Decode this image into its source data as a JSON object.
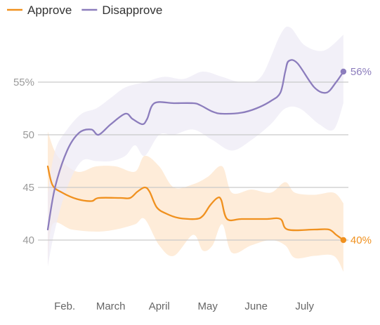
{
  "chart_data": {
    "type": "line",
    "title": "",
    "xlabel": "",
    "ylabel": "",
    "ylim": [
      36,
      60
    ],
    "grid": true,
    "legend_position": "top-left",
    "y_ticks": [
      {
        "value": 40,
        "label": "40"
      },
      {
        "value": 45,
        "label": "45"
      },
      {
        "value": 50,
        "label": "50"
      },
      {
        "value": 55,
        "label": "55%"
      }
    ],
    "x_ticks": [
      {
        "x": 1.35,
        "label": "Feb."
      },
      {
        "x": 2.3,
        "label": "March"
      },
      {
        "x": 3.3,
        "label": "April"
      },
      {
        "x": 4.3,
        "label": "May"
      },
      {
        "x": 5.3,
        "label": "June"
      },
      {
        "x": 6.3,
        "label": "July"
      }
    ],
    "x_range": [
      0.7,
      7.1
    ],
    "series": [
      {
        "name": "Approve",
        "color": "#f0911f",
        "band_color": "#fde5cc",
        "end_label": "40%",
        "points": [
          [
            1.0,
            47.0
          ],
          [
            1.1,
            45.2
          ],
          [
            1.3,
            44.5
          ],
          [
            1.6,
            43.9
          ],
          [
            1.9,
            43.7
          ],
          [
            2.05,
            44.0
          ],
          [
            2.5,
            44.0
          ],
          [
            2.7,
            44.0
          ],
          [
            2.85,
            44.6
          ],
          [
            3.0,
            45.0
          ],
          [
            3.1,
            44.6
          ],
          [
            3.25,
            43.1
          ],
          [
            3.45,
            42.5
          ],
          [
            3.7,
            42.1
          ],
          [
            4.05,
            42.0
          ],
          [
            4.2,
            42.3
          ],
          [
            4.35,
            43.3
          ],
          [
            4.5,
            44.0
          ],
          [
            4.58,
            43.8
          ],
          [
            4.7,
            42.0
          ],
          [
            5.0,
            42.0
          ],
          [
            5.5,
            42.0
          ],
          [
            5.8,
            42.0
          ],
          [
            5.95,
            41.0
          ],
          [
            6.5,
            41.0
          ],
          [
            6.8,
            41.0
          ],
          [
            6.95,
            40.5
          ],
          [
            7.1,
            40.0
          ]
        ],
        "band_upper": [
          [
            1.0,
            50.3
          ],
          [
            1.2,
            48.0
          ],
          [
            1.6,
            46.5
          ],
          [
            2.0,
            47.0
          ],
          [
            2.4,
            47.0
          ],
          [
            2.8,
            46.5
          ],
          [
            3.0,
            48.0
          ],
          [
            3.3,
            47.0
          ],
          [
            3.6,
            45.0
          ],
          [
            4.0,
            45.3
          ],
          [
            4.3,
            46.0
          ],
          [
            4.6,
            47.0
          ],
          [
            4.8,
            44.5
          ],
          [
            5.2,
            44.8
          ],
          [
            5.6,
            44.5
          ],
          [
            5.9,
            45.5
          ],
          [
            6.1,
            44.5
          ],
          [
            6.5,
            44.3
          ],
          [
            6.9,
            44.5
          ],
          [
            7.1,
            43.5
          ]
        ],
        "band_lower": [
          [
            1.0,
            37.5
          ],
          [
            1.1,
            41.5
          ],
          [
            1.5,
            41.0
          ],
          [
            2.0,
            40.8
          ],
          [
            2.4,
            41.0
          ],
          [
            2.8,
            41.5
          ],
          [
            3.0,
            42.0
          ],
          [
            3.3,
            39.5
          ],
          [
            3.6,
            38.5
          ],
          [
            4.0,
            40.5
          ],
          [
            4.2,
            39.0
          ],
          [
            4.4,
            39.5
          ],
          [
            4.6,
            41.5
          ],
          [
            4.8,
            38.8
          ],
          [
            5.2,
            39.5
          ],
          [
            5.6,
            40.0
          ],
          [
            5.9,
            39.5
          ],
          [
            6.1,
            38.3
          ],
          [
            6.5,
            38.5
          ],
          [
            6.9,
            38.5
          ],
          [
            7.1,
            37.0
          ]
        ]
      },
      {
        "name": "Disapprove",
        "color": "#8c7dbd",
        "band_color": "#eeebf6",
        "end_label": "56%",
        "points": [
          [
            1.0,
            41.0
          ],
          [
            1.15,
            45.0
          ],
          [
            1.4,
            48.5
          ],
          [
            1.65,
            50.2
          ],
          [
            1.9,
            50.5
          ],
          [
            2.05,
            50.0
          ],
          [
            2.3,
            51.0
          ],
          [
            2.6,
            52.0
          ],
          [
            2.75,
            51.5
          ],
          [
            2.95,
            51.0
          ],
          [
            3.05,
            51.5
          ],
          [
            3.2,
            53.0
          ],
          [
            3.6,
            53.0
          ],
          [
            4.0,
            53.0
          ],
          [
            4.15,
            52.8
          ],
          [
            4.4,
            52.2
          ],
          [
            4.6,
            52.0
          ],
          [
            5.0,
            52.1
          ],
          [
            5.3,
            52.5
          ],
          [
            5.6,
            53.2
          ],
          [
            5.8,
            54.0
          ],
          [
            5.9,
            56.0
          ],
          [
            5.97,
            57.0
          ],
          [
            6.15,
            56.8
          ],
          [
            6.5,
            54.5
          ],
          [
            6.75,
            54.0
          ],
          [
            6.95,
            55.0
          ],
          [
            7.1,
            56.0
          ]
        ],
        "band_upper": [
          [
            1.0,
            44.5
          ],
          [
            1.15,
            48.5
          ],
          [
            1.4,
            50.5
          ],
          [
            1.7,
            52.0
          ],
          [
            2.0,
            52.5
          ],
          [
            2.3,
            53.5
          ],
          [
            2.6,
            54.5
          ],
          [
            3.0,
            55.0
          ],
          [
            3.4,
            55.5
          ],
          [
            3.8,
            55.3
          ],
          [
            4.2,
            56.0
          ],
          [
            4.6,
            55.5
          ],
          [
            5.0,
            55.0
          ],
          [
            5.4,
            55.5
          ],
          [
            5.8,
            59.5
          ],
          [
            6.0,
            60.2
          ],
          [
            6.3,
            58.5
          ],
          [
            6.7,
            58.0
          ],
          [
            7.1,
            59.5
          ]
        ],
        "band_lower": [
          [
            1.0,
            37.5
          ],
          [
            1.15,
            41.0
          ],
          [
            1.4,
            45.0
          ],
          [
            1.7,
            47.5
          ],
          [
            2.0,
            47.5
          ],
          [
            2.3,
            47.5
          ],
          [
            2.6,
            48.0
          ],
          [
            2.8,
            49.0
          ],
          [
            3.0,
            48.0
          ],
          [
            3.3,
            50.0
          ],
          [
            3.6,
            50.0
          ],
          [
            4.0,
            50.5
          ],
          [
            4.4,
            49.5
          ],
          [
            4.8,
            48.5
          ],
          [
            5.2,
            49.5
          ],
          [
            5.6,
            51.0
          ],
          [
            5.9,
            52.5
          ],
          [
            6.2,
            52.5
          ],
          [
            6.6,
            51.0
          ],
          [
            6.9,
            50.5
          ],
          [
            7.1,
            53.0
          ]
        ]
      }
    ]
  }
}
